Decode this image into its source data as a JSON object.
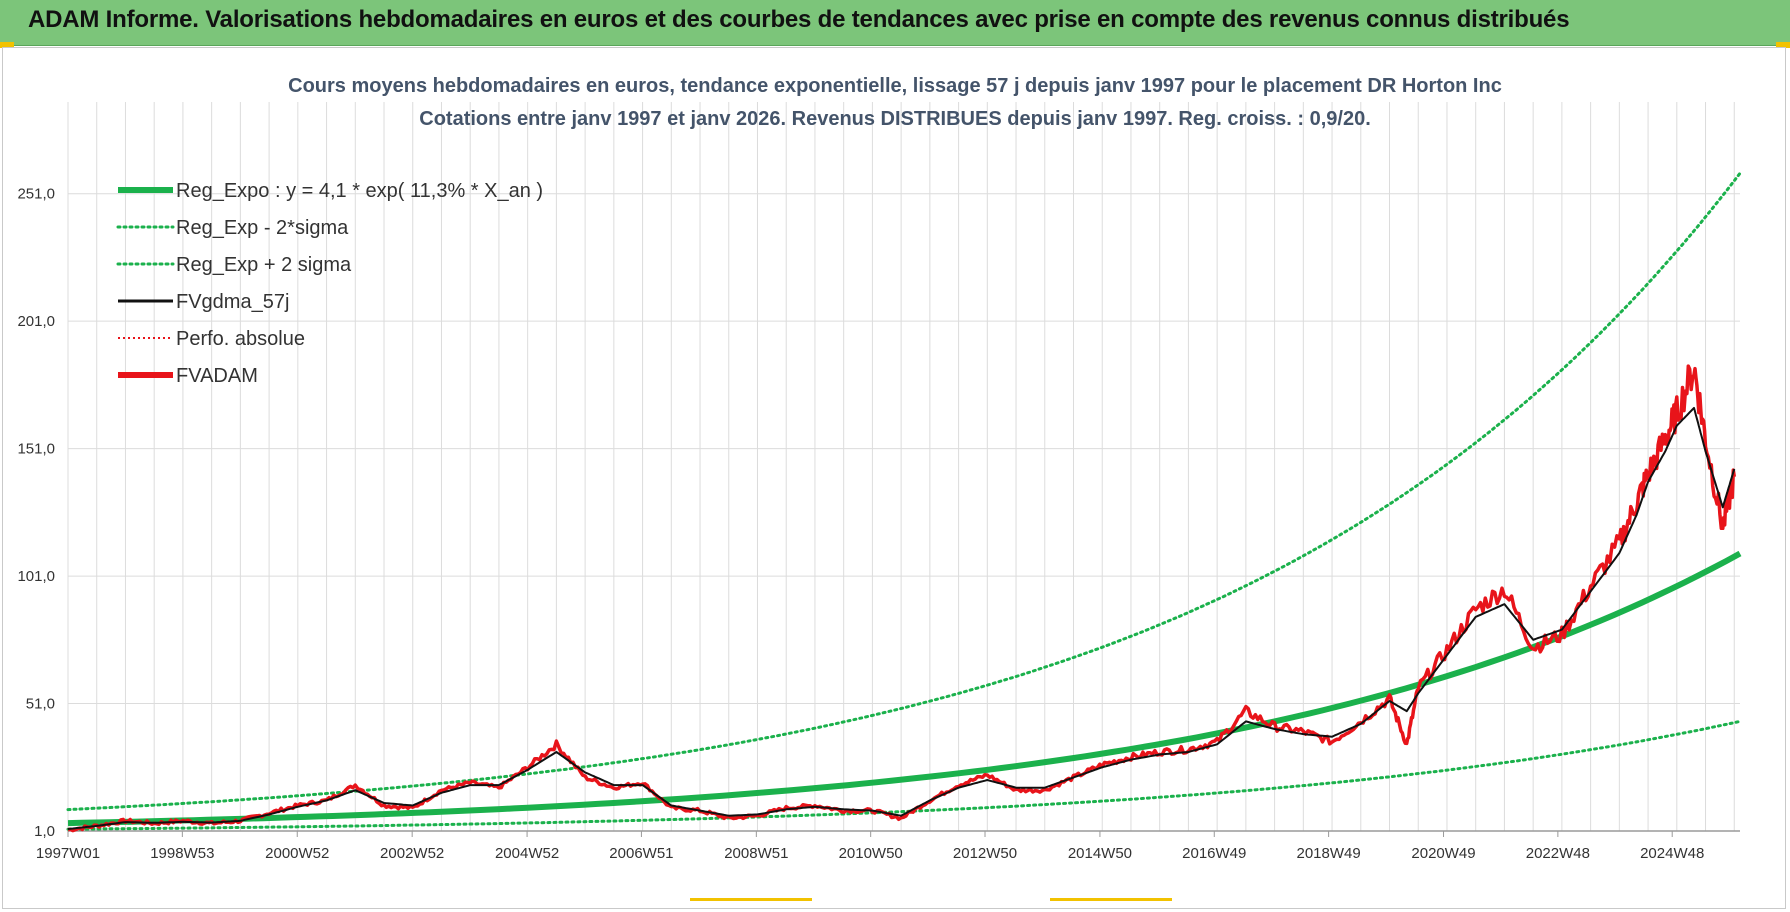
{
  "header": {
    "title": "ADAM Informe. Valorisations hebdomadaires en euros et des courbes de tendances avec prise en compte des revenus connus distribués"
  },
  "colors": {
    "header_bg": "#7cc57a",
    "green": "#1bb14c",
    "red": "#e8141a",
    "black": "#111111",
    "grid": "#dcdcdc",
    "title": "#44546a"
  },
  "chart_data": {
    "type": "line",
    "title": "Cours moyens hebdomadaires en euros, tendance exponentielle, lissage 57 j depuis janv 1997 pour le placement DR Horton Inc",
    "subtitle": "Cotations entre janv 1997 et janv 2026. Revenus DISTRIBUES depuis janv 1997. Reg. croiss. : 0,9/20.",
    "xlim": [
      1997.0,
      2026.1
    ],
    "ylim": [
      1,
      276
    ],
    "y_ticks": [
      1,
      51,
      101,
      151,
      201,
      251
    ],
    "y_tick_labels": [
      "1,0",
      "51,0",
      "101,0",
      "151,0",
      "201,0",
      "251,0"
    ],
    "x_ticks": [
      1997.0,
      1998.99,
      2000.99,
      2002.99,
      2004.99,
      2006.98,
      2008.98,
      2010.97,
      2012.96,
      2014.96,
      2016.95,
      2018.94,
      2020.94,
      2022.93,
      2024.92
    ],
    "x_tick_labels": [
      "1997W01",
      "1998W53",
      "2000W52",
      "2002W52",
      "2004W52",
      "2006W51",
      "2008W51",
      "2010W50",
      "2012W50",
      "2014W50",
      "2016W49",
      "2018W49",
      "2020W49",
      "2022W48",
      "2024W48"
    ],
    "grid": true,
    "legend_position": "top-left",
    "legend": [
      {
        "key": "reg",
        "label": "Reg_Expo : y = 4,1 * exp( 11,3% *  X_an )",
        "style": "solid-thick",
        "color": "#1bb14c"
      },
      {
        "key": "lo",
        "label": "Reg_Exp - 2*sigma",
        "style": "dotted",
        "color": "#1bb14c"
      },
      {
        "key": "hi",
        "label": "Reg_Exp + 2 sigma",
        "style": "dotted",
        "color": "#1bb14c"
      },
      {
        "key": "mm",
        "label": "FVgdma_57j",
        "style": "solid",
        "color": "#111111"
      },
      {
        "key": "perf",
        "label": "Perfo. absolue",
        "style": "dotted-thin",
        "color": "#e8141a"
      },
      {
        "key": "adam",
        "label": "FVADAM",
        "style": "solid-thick",
        "color": "#e8141a"
      }
    ],
    "x": [
      1997.0,
      1997.5,
      1998.0,
      1998.5,
      1999.0,
      1999.5,
      2000.0,
      2000.5,
      2001.0,
      2001.5,
      2002.0,
      2002.5,
      2003.0,
      2003.5,
      2004.0,
      2004.5,
      2005.0,
      2005.5,
      2006.0,
      2006.5,
      2007.0,
      2007.5,
      2008.0,
      2008.5,
      2009.0,
      2009.5,
      2010.0,
      2010.5,
      2011.0,
      2011.5,
      2012.0,
      2012.5,
      2013.0,
      2013.5,
      2014.0,
      2014.5,
      2015.0,
      2015.5,
      2016.0,
      2016.5,
      2017.0,
      2017.5,
      2018.0,
      2018.5,
      2019.0,
      2019.5,
      2020.0,
      2020.3,
      2020.5,
      2021.0,
      2021.5,
      2022.0,
      2022.5,
      2023.0,
      2023.5,
      2024.0,
      2024.3,
      2024.5,
      2024.8,
      2025.0,
      2025.3,
      2025.5,
      2025.8,
      2026.0
    ],
    "series": [
      {
        "name": "FVADAM",
        "values": [
          1.5,
          3,
          5,
          4,
          5,
          4,
          5,
          8,
          11,
          13,
          19,
          11,
          10,
          17,
          20,
          18,
          26,
          35,
          22,
          18,
          20,
          10,
          9,
          6,
          7,
          10,
          11,
          9,
          9,
          6,
          13,
          19,
          23,
          17,
          17,
          22,
          27,
          30,
          32,
          33,
          36,
          48,
          42,
          40,
          36,
          44,
          53,
          35,
          57,
          72,
          88,
          96,
          73,
          78,
          97,
          114,
          130,
          141,
          155,
          165,
          183,
          155,
          120,
          140
        ]
      },
      {
        "name": "FVgdma_57j",
        "values": [
          1.8,
          3,
          4.5,
          4.2,
          4.6,
          4.3,
          5,
          7.5,
          10.5,
          13,
          17,
          12,
          11,
          16,
          19,
          19,
          25,
          32,
          24,
          19,
          19,
          11,
          9,
          7,
          7.5,
          9.5,
          10.5,
          9.5,
          9,
          7,
          13,
          18,
          21,
          18,
          18,
          22,
          26,
          29,
          31,
          32,
          35,
          44,
          41,
          39,
          38,
          43,
          52,
          48,
          55,
          70,
          85,
          90,
          76,
          80,
          95,
          110,
          125,
          138,
          150,
          160,
          167,
          150,
          128,
          143
        ]
      }
    ],
    "regression": {
      "a": 4.1,
      "rate": 0.113,
      "x0": 1997.0,
      "x_end": 2026.1,
      "sigma_band": {
        "lower_end": 44,
        "upper_end": 259,
        "lower_start": 1.7,
        "upper_start": 9.4
      }
    }
  }
}
